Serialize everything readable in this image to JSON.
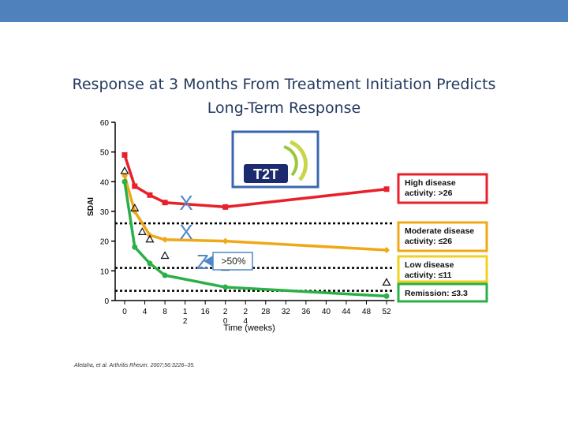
{
  "title_lines": [
    "Response at 3 Months From Treatment Initiation Predicts",
    "Long-Term Response"
  ],
  "chart_data": {
    "type": "line",
    "ylabel": "SDAI",
    "xlabel": "Time (weeks)",
    "ylim": [
      0,
      60
    ],
    "y_ticks": [
      "0",
      "10",
      "20",
      "30",
      "40",
      "50",
      "60"
    ],
    "x_ticks": [
      {
        "x": 0,
        "label": "0"
      },
      {
        "x": 4,
        "label": "4"
      },
      {
        "x": 8,
        "label": "8"
      },
      {
        "x": 12,
        "label": "1\n2"
      },
      {
        "x": 16,
        "label": "16"
      },
      {
        "x": 20,
        "label": "2\n0"
      },
      {
        "x": 24,
        "label": "2\n4"
      },
      {
        "x": 28,
        "label": "28"
      },
      {
        "x": 32,
        "label": "32"
      },
      {
        "x": 36,
        "label": "36"
      },
      {
        "x": 40,
        "label": "40"
      },
      {
        "x": 44,
        "label": "44"
      },
      {
        "x": 48,
        "label": "48"
      },
      {
        "x": 52,
        "label": "52"
      }
    ],
    "series": [
      {
        "color": "#e8202a",
        "marker": "square",
        "x": [
          0,
          2,
          5,
          8,
          20,
          52
        ],
        "y": [
          49,
          38.5,
          35.5,
          33,
          31.5,
          37.5
        ]
      },
      {
        "color": "#f0a818",
        "marker": "diamond",
        "x": [
          0,
          2,
          5,
          8,
          20,
          52
        ],
        "y": [
          42,
          30,
          22,
          20.5,
          20,
          17
        ]
      },
      {
        "color": "#2bb048",
        "marker": "circle",
        "x": [
          0,
          2,
          5,
          8,
          20,
          52
        ],
        "y": [
          40,
          18,
          12.5,
          8.5,
          4.5,
          1.5
        ]
      }
    ],
    "triangle_marks": [
      {
        "x": 0,
        "y": 43.5
      },
      {
        "x": 2,
        "y": 31
      },
      {
        "x": 3.5,
        "y": 23
      },
      {
        "x": 5,
        "y": 20.5
      },
      {
        "x": 8,
        "y": 15
      },
      {
        "x": 20,
        "y": 11
      },
      {
        "x": 52,
        "y": 6
      }
    ],
    "reference_lines": [
      {
        "y": 26,
        "label": "High disease activity: >26",
        "border": "#e8202a"
      },
      {
        "y": 11,
        "label": "Moderate disease activity: ≤26",
        "border": "#f0a818"
      },
      {
        "y": 3.3,
        "label": "Low disease activity: ≤11",
        "border": "#f0d020"
      }
    ],
    "remission_label": {
      "label": "Remission: ≤3.3",
      "border": "#2bb048"
    },
    "annotations": {
      "x_mark_1": "X",
      "x_mark_2": "X",
      "z_mark": "Z",
      "arrow_label": ">50%"
    },
    "logo_text": "T2T"
  },
  "citation": "Aletaha, et al. Arthritis Rheum. 2007;56:3226–35."
}
